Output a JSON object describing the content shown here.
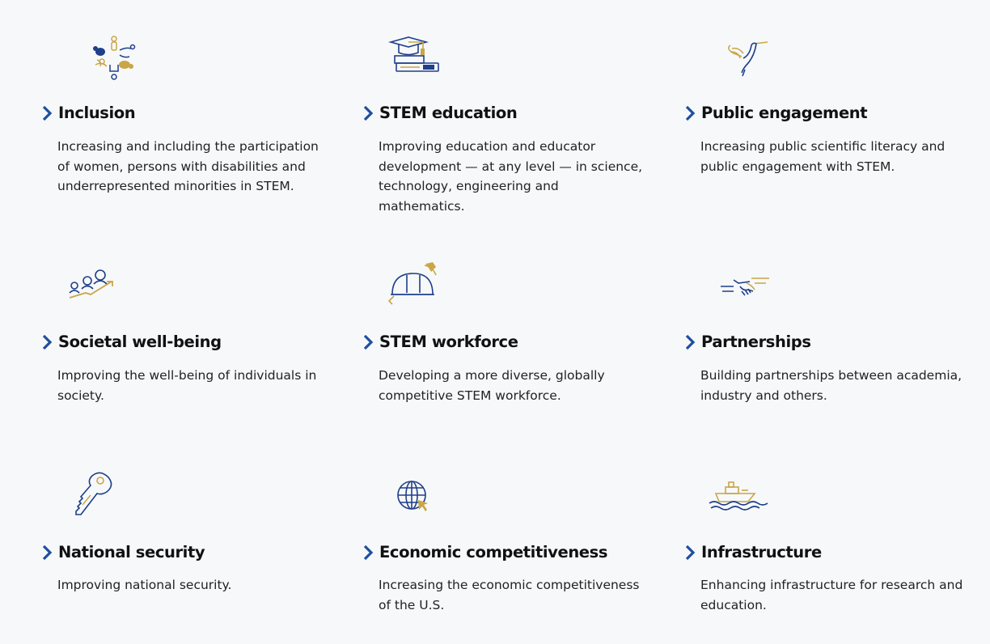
{
  "colors": {
    "navy": "#1e3f8a",
    "gold": "#c9a646",
    "chevron": "#1e4ea0"
  },
  "cards": [
    {
      "icon": "diverse-people-icon",
      "title": "Inclusion",
      "description": "Increasing and including the participation of women, persons with disabilities and underrepresented minorities in STEM."
    },
    {
      "icon": "graduation-cap-books-icon",
      "title": "STEM education",
      "description": "Improving education and educator development — at any level — in science, technology, engineering and mathematics."
    },
    {
      "icon": "hummingbird-icon",
      "title": "Public engagement",
      "description": "Increasing public scientific literacy and public engagement with STEM."
    },
    {
      "icon": "people-growth-icon",
      "title": "Societal well-being",
      "description": "Improving the well-being of individuals in society."
    },
    {
      "icon": "hard-hat-pickaxe-icon",
      "title": "STEM workforce",
      "description": "Developing a more diverse, globally competitive STEM workforce."
    },
    {
      "icon": "handshake-icon",
      "title": "Partnerships",
      "description": "Building partnerships between academia, industry and others."
    },
    {
      "icon": "key-icon",
      "title": "National security",
      "description": "Improving national security."
    },
    {
      "icon": "globe-cursor-icon",
      "title": "Economic competitiveness",
      "description": "Increasing the economic competitiveness of the U.S."
    },
    {
      "icon": "ship-icon",
      "title": "Infrastructure",
      "description": "Enhancing infrastructure for research and education."
    }
  ]
}
